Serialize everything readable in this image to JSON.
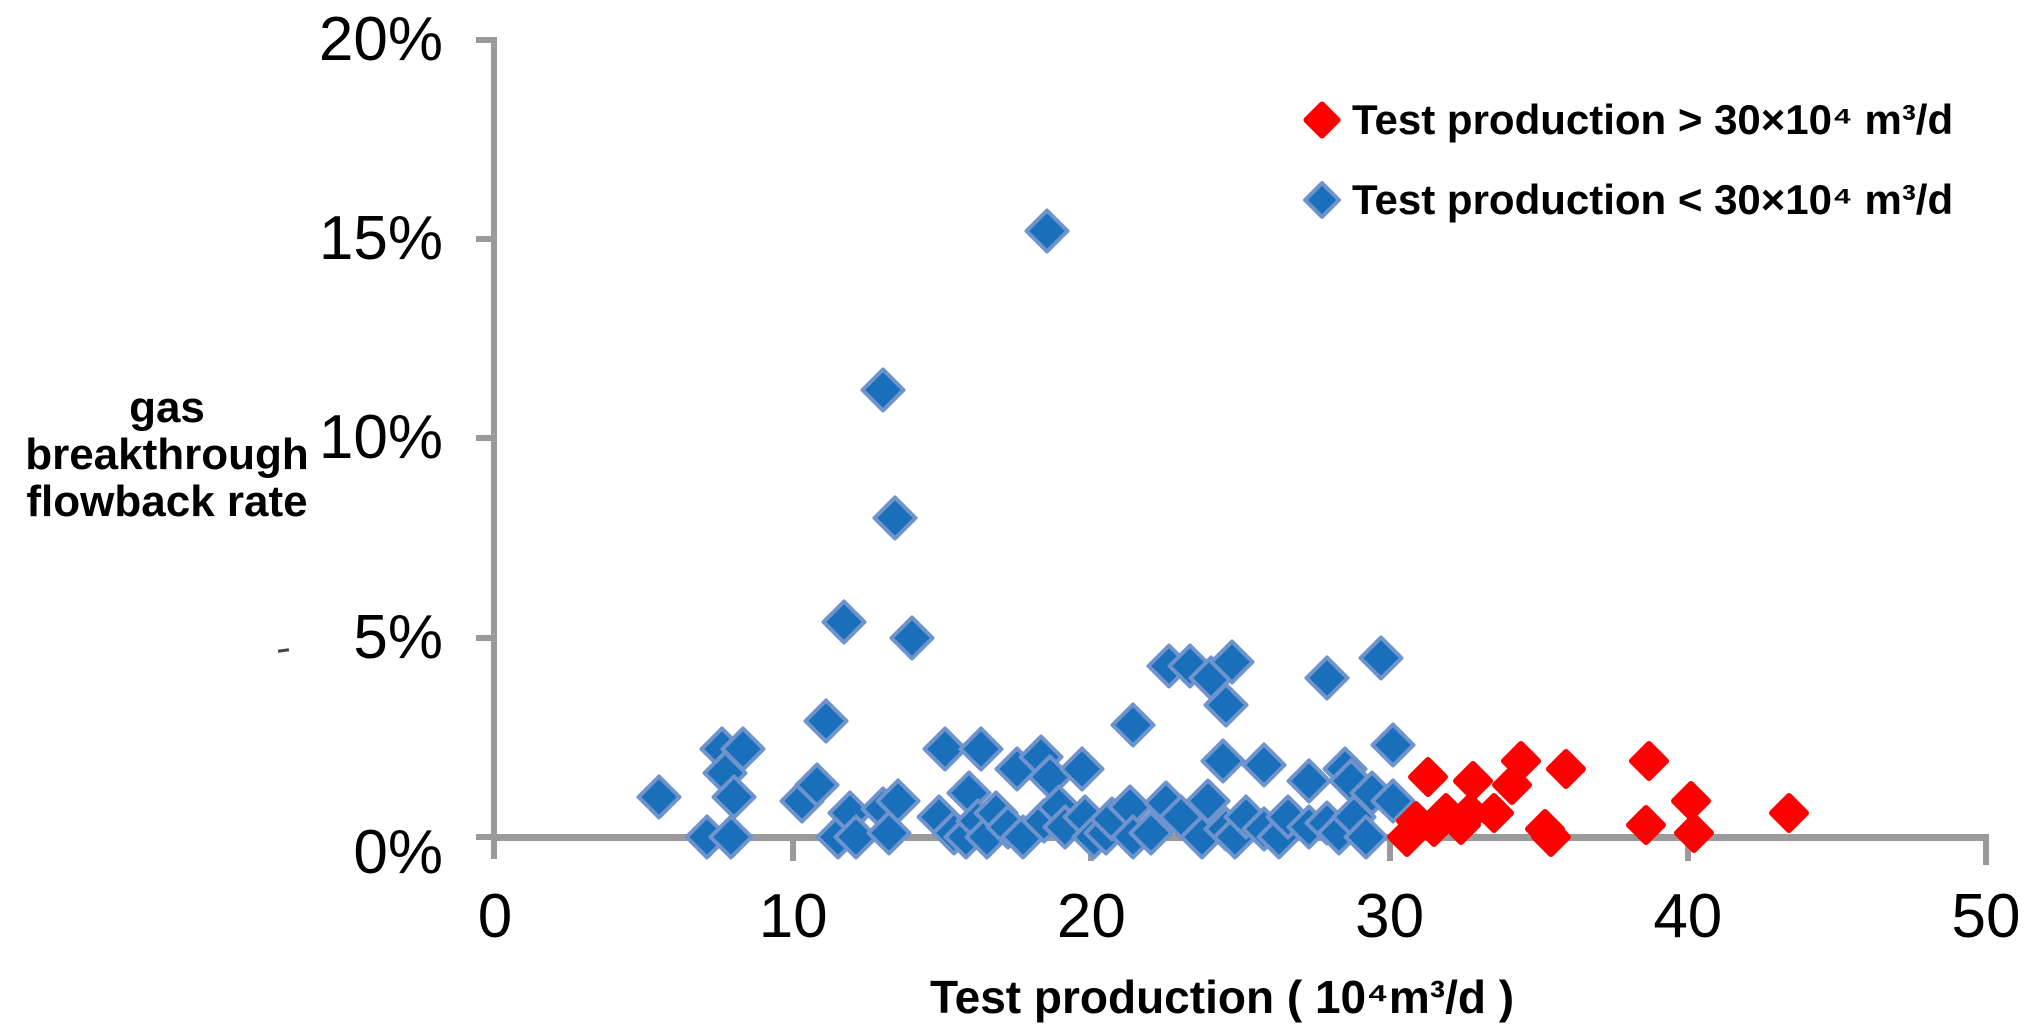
{
  "colors": {
    "red_series": "#ff0000",
    "blue_series_fill": "#1a6fbb",
    "blue_series_border": "#6f94cd",
    "axis": "#9a9a9a",
    "text": "#000000"
  },
  "y_axis": {
    "title_lines": [
      "gas",
      "breakthrough",
      "flowback rate"
    ],
    "tick_labels": [
      "20%",
      "15%",
      "10%",
      "5%",
      "0%"
    ],
    "ticks_pct": [
      20,
      15,
      10,
      5,
      0
    ]
  },
  "x_axis": {
    "title": "Test production ( 10⁴m³/d )",
    "tick_labels": [
      "0",
      "10",
      "20",
      "30",
      "40",
      "50"
    ],
    "ticks": [
      0,
      10,
      20,
      30,
      40,
      50
    ]
  },
  "legend": {
    "items": [
      {
        "label": "Test production > 30×10⁴ m³/d",
        "series": "red"
      },
      {
        "label": "Test production < 30×10⁴ m³/d",
        "series": "blue"
      }
    ]
  },
  "chart_data": {
    "type": "scatter",
    "title": "",
    "xlabel": "Test production ( 10⁴m³/d )",
    "ylabel": "gas breakthrough flowback rate",
    "xlim": [
      0,
      50
    ],
    "ylim": [
      0,
      20
    ],
    "y_unit": "%",
    "grid": false,
    "legend_position": "top-right",
    "series": [
      {
        "name": "Test production < 30×10⁴ m³/d",
        "marker": "diamond",
        "color": "#1a6fbb",
        "points": [
          [
            5.5,
            1.0
          ],
          [
            7.1,
            0.0
          ],
          [
            7.6,
            2.2
          ],
          [
            7.7,
            1.6
          ],
          [
            7.9,
            0.0
          ],
          [
            8.0,
            1.0
          ],
          [
            8.3,
            2.2
          ],
          [
            10.3,
            0.9
          ],
          [
            10.8,
            1.3
          ],
          [
            11.1,
            2.9
          ],
          [
            11.5,
            0.0
          ],
          [
            11.7,
            5.4
          ],
          [
            11.9,
            0.6
          ],
          [
            12.1,
            0.0
          ],
          [
            13.0,
            11.2
          ],
          [
            13.4,
            8.0
          ],
          [
            14.0,
            5.0
          ],
          [
            13.0,
            0.7
          ],
          [
            13.2,
            0.1
          ],
          [
            13.5,
            0.9
          ],
          [
            14.9,
            0.5
          ],
          [
            15.1,
            2.2
          ],
          [
            15.4,
            0.1
          ],
          [
            15.8,
            0.0
          ],
          [
            15.9,
            1.1
          ],
          [
            16.2,
            0.4
          ],
          [
            16.3,
            2.2
          ],
          [
            16.5,
            0.0
          ],
          [
            16.8,
            0.6
          ],
          [
            17.2,
            0.25
          ],
          [
            17.5,
            1.7
          ],
          [
            17.7,
            0.0
          ],
          [
            18.3,
            2.0
          ],
          [
            18.4,
            0.4
          ],
          [
            18.5,
            15.2
          ],
          [
            18.6,
            1.5
          ],
          [
            18.9,
            0.75
          ],
          [
            19.1,
            0.25
          ],
          [
            19.7,
            1.7
          ],
          [
            19.8,
            0.5
          ],
          [
            20.1,
            0.0
          ],
          [
            20.5,
            0.1
          ],
          [
            20.7,
            0.45
          ],
          [
            21.3,
            0.75
          ],
          [
            21.4,
            2.8
          ],
          [
            21.4,
            0.0
          ],
          [
            22.0,
            0.1
          ],
          [
            22.5,
            0.85
          ],
          [
            22.6,
            4.3
          ],
          [
            23.0,
            0.5
          ],
          [
            23.3,
            4.3
          ],
          [
            23.7,
            0.0
          ],
          [
            23.9,
            0.9
          ],
          [
            24.0,
            4.0
          ],
          [
            24.4,
            1.9
          ],
          [
            24.5,
            3.3
          ],
          [
            24.5,
            0.2
          ],
          [
            24.7,
            4.4
          ],
          [
            24.8,
            0.0
          ],
          [
            25.2,
            0.5
          ],
          [
            25.8,
            1.8
          ],
          [
            25.8,
            0.2
          ],
          [
            26.3,
            0.0
          ],
          [
            26.6,
            0.5
          ],
          [
            27.3,
            1.4
          ],
          [
            27.3,
            0.25
          ],
          [
            27.9,
            4.0
          ],
          [
            27.9,
            0.35
          ],
          [
            28.3,
            0.1
          ],
          [
            28.5,
            1.7
          ],
          [
            28.7,
            1.4
          ],
          [
            28.8,
            0.5
          ],
          [
            29.2,
            0.0
          ],
          [
            29.4,
            1.1
          ],
          [
            29.7,
            4.5
          ],
          [
            30.1,
            2.3
          ],
          [
            30.1,
            0.9
          ]
        ]
      },
      {
        "name": "Test production > 30×10⁴ m³/d",
        "marker": "diamond",
        "color": "#ff0000",
        "points": [
          [
            30.6,
            0.0
          ],
          [
            30.9,
            0.4
          ],
          [
            31.3,
            1.5
          ],
          [
            31.5,
            0.25
          ],
          [
            31.9,
            0.6
          ],
          [
            32.4,
            0.3
          ],
          [
            32.7,
            0.6
          ],
          [
            32.8,
            1.4
          ],
          [
            33.5,
            0.6
          ],
          [
            34.1,
            1.3
          ],
          [
            34.4,
            1.9
          ],
          [
            35.2,
            0.2
          ],
          [
            35.4,
            0.0
          ],
          [
            35.9,
            1.7
          ],
          [
            38.6,
            0.3
          ],
          [
            38.7,
            1.9
          ],
          [
            40.1,
            0.9
          ],
          [
            40.2,
            0.1
          ],
          [
            43.4,
            0.6
          ]
        ]
      }
    ]
  }
}
